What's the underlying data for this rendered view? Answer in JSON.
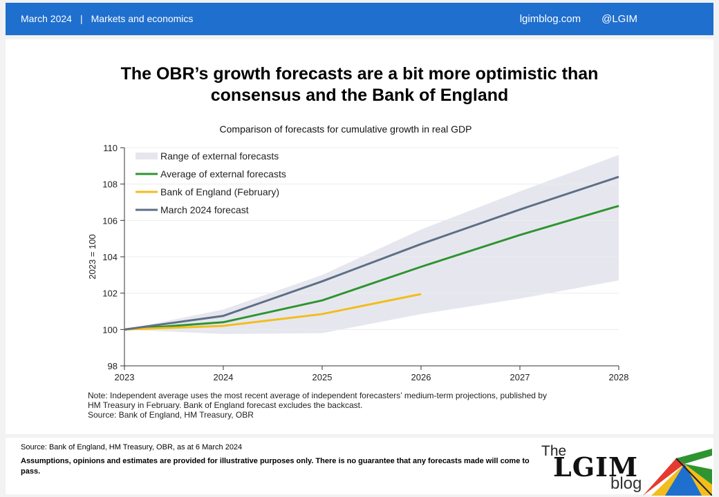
{
  "header": {
    "date": "March 2024",
    "separator": "|",
    "category": "Markets and economics",
    "site": "lgimblog.com",
    "handle": "@LGIM"
  },
  "title": {
    "line1": "The OBR’s growth forecasts are a bit more optimistic than",
    "line2": "consensus and the Bank of England"
  },
  "subtitle": "Comparison of forecasts for cumulative growth in real GDP",
  "chart_data": {
    "type": "line",
    "title": "",
    "xlabel": "",
    "ylabel": "2023 = 100",
    "x": [
      2023,
      2024,
      2025,
      2026,
      2027,
      2028
    ],
    "ylim": [
      98,
      110
    ],
    "yticks": [
      98,
      100,
      102,
      104,
      106,
      108,
      110
    ],
    "grid": true,
    "legend_position": "top-left",
    "band": {
      "name": "Range of external forecasts",
      "color": "#e6e7ee",
      "upper": [
        100,
        101.1,
        103.0,
        105.5,
        107.6,
        109.6
      ],
      "lower": [
        100,
        99.75,
        99.8,
        100.85,
        101.7,
        102.7
      ]
    },
    "series": [
      {
        "name": "Average of external forecasts",
        "color": "#2e9431",
        "x": [
          2023,
          2024,
          2025,
          2026,
          2027,
          2028
        ],
        "values": [
          100,
          100.4,
          101.6,
          103.45,
          105.2,
          106.8
        ]
      },
      {
        "name": "Bank of England (February)",
        "color": "#f2bd1d",
        "x": [
          2023,
          2024,
          2025,
          2026
        ],
        "values": [
          100,
          100.2,
          100.85,
          101.95
        ]
      },
      {
        "name": "March 2024 forecast",
        "color": "#5d6f87",
        "x": [
          2023,
          2024,
          2025,
          2026,
          2027,
          2028
        ],
        "values": [
          100,
          100.75,
          102.65,
          104.7,
          106.6,
          108.4
        ]
      }
    ]
  },
  "note": {
    "line1": "Note: Independent average uses the most recent average of independent forecasters’ medium-term projections, published by",
    "line2": "HM Treasury in February. Bank of England forecast excludes the backcast.",
    "line3": "Source: Bank of England, HM Treasury, OBR"
  },
  "footer": {
    "source": "Source: Bank of England, HM Treasury, OBR, as at 6 March 2024",
    "disclaimer": "Assumptions, opinions and estimates are provided for illustrative purposes only. There is no guarantee that any forecasts made will come to pass."
  },
  "logo": {
    "the": "The",
    "lgim": "LGIM",
    "blog": "blog"
  }
}
